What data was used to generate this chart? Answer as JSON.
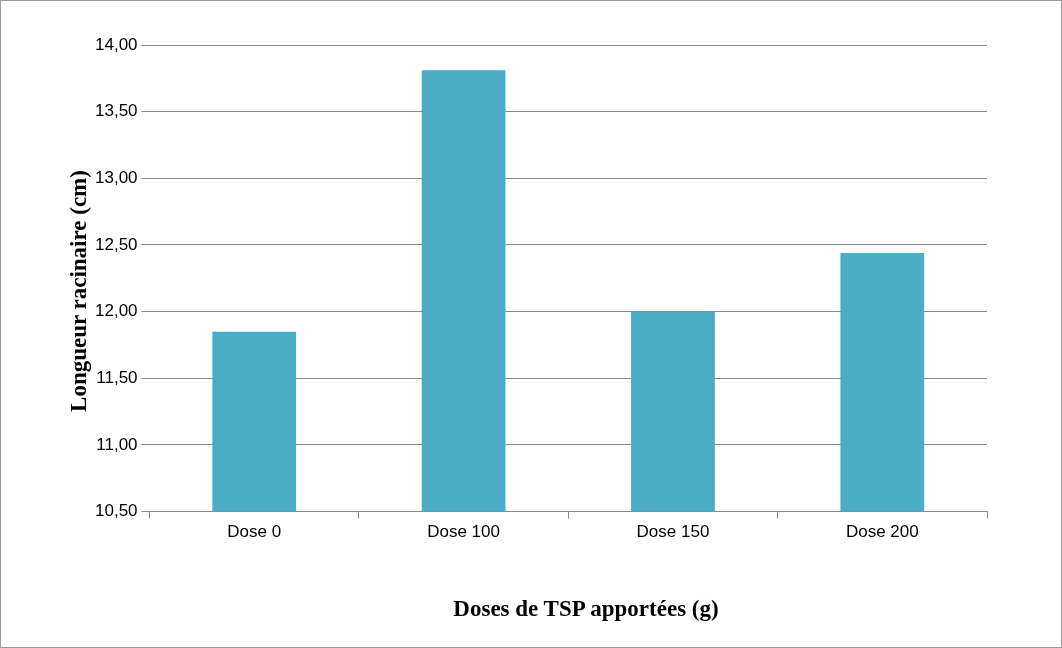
{
  "chart_data": {
    "type": "bar",
    "xlabel": "Doses de TSP apportées (g)",
    "ylabel": "Longueur racinaire (cm)",
    "categories": [
      "Dose 0",
      "Dose 100",
      "Dose 150",
      "Dose 200"
    ],
    "values": [
      11.85,
      13.81,
      12.0,
      12.44
    ],
    "color": "#4bacc6",
    "ylim": [
      10.5,
      14
    ],
    "yticks": [
      {
        "value": 10.5,
        "label": "10,50"
      },
      {
        "value": 11,
        "label": "11,00"
      },
      {
        "value": 11.5,
        "label": "11,50"
      },
      {
        "value": 12,
        "label": "12,00"
      },
      {
        "value": 12.5,
        "label": "12,50"
      },
      {
        "value": 13,
        "label": "13,00"
      },
      {
        "value": 13.5,
        "label": "13,50"
      },
      {
        "value": 14,
        "label": "14,00"
      }
    ],
    "grid": "y",
    "legend": false
  }
}
